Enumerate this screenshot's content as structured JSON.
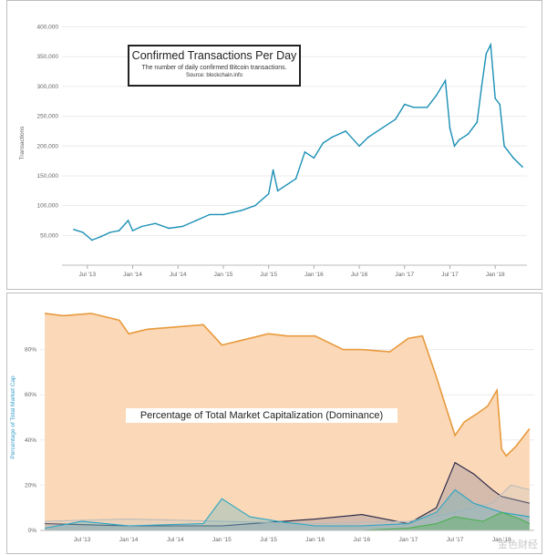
{
  "chart_data": [
    {
      "type": "line",
      "title": "Confirmed Transactions Per Day",
      "subtitle": "The number of daily confirmed Bitcoin transactions.",
      "source": "Source: blockchain.info",
      "ylabel": "Transactions",
      "ylim": [
        0,
        410000
      ],
      "y_ticks": [
        "50,000",
        "100,000",
        "150,000",
        "200,000",
        "250,000",
        "300,000",
        "350,000",
        "400,000"
      ],
      "x_ticks": [
        "Jul '13",
        "Jan '14",
        "Jul '14",
        "Jan '15",
        "Jul '15",
        "Jan '16",
        "Jul '16",
        "Jan '17",
        "Jul '17",
        "Jan '18"
      ],
      "series": [
        {
          "color": "#1a8fb5",
          "x": [
            2013.35,
            2013.45,
            2013.55,
            2013.65,
            2013.75,
            2013.85,
            2013.95,
            2014.0,
            2014.1,
            2014.25,
            2014.4,
            2014.55,
            2014.7,
            2014.85,
            2015.0,
            2015.2,
            2015.35,
            2015.5,
            2015.55,
            2015.6,
            2015.8,
            2015.9,
            2016.0,
            2016.1,
            2016.2,
            2016.35,
            2016.5,
            2016.6,
            2016.75,
            2016.9,
            2017.0,
            2017.1,
            2017.25,
            2017.35,
            2017.45,
            2017.5,
            2017.55,
            2017.6,
            2017.7,
            2017.8,
            2017.85,
            2017.9,
            2017.95,
            2018.0,
            2018.05,
            2018.1,
            2018.2,
            2018.3
          ],
          "y": [
            60000,
            55000,
            42000,
            48000,
            55000,
            58000,
            75000,
            58000,
            65000,
            70000,
            62000,
            65000,
            75000,
            85000,
            85000,
            92000,
            100000,
            120000,
            160000,
            125000,
            145000,
            190000,
            180000,
            205000,
            215000,
            225000,
            200000,
            215000,
            230000,
            245000,
            270000,
            265000,
            265000,
            285000,
            310000,
            230000,
            200000,
            210000,
            220000,
            240000,
            300000,
            355000,
            370000,
            280000,
            270000,
            200000,
            180000,
            165000
          ]
        }
      ]
    },
    {
      "type": "area",
      "title": "Percentage of Total Market Capitalization (Dominance)",
      "ylabel": "Percentage of Total Market Cap",
      "ylim": [
        0,
        100
      ],
      "y_ticks": [
        "0%",
        "20%",
        "40%",
        "60%",
        "80%"
      ],
      "x_ticks": [
        "Jul '13",
        "Jan '14",
        "Jul '14",
        "Jan '15",
        "Jul '15",
        "Jan '16",
        "Jul '16",
        "Jan '17",
        "Jul '17",
        "Jan '18"
      ],
      "series": [
        {
          "color": "#e89a3c",
          "fill": "#fbd8b7",
          "x": [
            2013.1,
            2013.3,
            2013.6,
            2013.9,
            2014.0,
            2014.2,
            2014.5,
            2014.8,
            2015.0,
            2015.2,
            2015.5,
            2015.7,
            2016.0,
            2016.3,
            2016.5,
            2016.8,
            2017.0,
            2017.15,
            2017.3,
            2017.4,
            2017.5,
            2017.6,
            2017.75,
            2017.85,
            2017.95,
            2018.0,
            2018.05,
            2018.15,
            2018.3
          ],
          "y": [
            96,
            95,
            96,
            93,
            87,
            89,
            90,
            91,
            82,
            84,
            87,
            86,
            86,
            80,
            80,
            79,
            85,
            86,
            68,
            55,
            42,
            48,
            52,
            55,
            62,
            36,
            33,
            37,
            45
          ]
        },
        {
          "color": "#222244",
          "fill": "rgba(100,100,140,0.25)",
          "x": [
            2013.1,
            2014.0,
            2015.0,
            2016.0,
            2016.5,
            2017.0,
            2017.3,
            2017.5,
            2017.7,
            2017.9,
            2018.0,
            2018.3
          ],
          "y": [
            3,
            2,
            2,
            5,
            7,
            3,
            10,
            30,
            25,
            18,
            15,
            12
          ]
        },
        {
          "color": "#bbbbbb",
          "fill": "rgba(200,200,200,0.3)",
          "x": [
            2013.1,
            2014.0,
            2015.0,
            2016.0,
            2017.0,
            2017.5,
            2017.9,
            2018.1,
            2018.3
          ],
          "y": [
            4,
            5,
            4,
            3,
            4,
            8,
            12,
            20,
            18
          ]
        },
        {
          "color": "#2aa6c4",
          "fill": "rgba(42,166,196,0.25)",
          "x": [
            2013.1,
            2013.5,
            2014.0,
            2014.8,
            2015.0,
            2015.3,
            2015.6,
            2016.0,
            2016.5,
            2017.0,
            2017.3,
            2017.5,
            2017.7,
            2018.0,
            2018.3
          ],
          "y": [
            1,
            4,
            2,
            3,
            14,
            6,
            4,
            2,
            2,
            3,
            8,
            18,
            12,
            8,
            6
          ]
        },
        {
          "color": "#4caf50",
          "fill": "rgba(76,175,80,0.35)",
          "x": [
            2013.1,
            2016.5,
            2017.0,
            2017.3,
            2017.5,
            2017.8,
            2018.0,
            2018.2,
            2018.3
          ],
          "y": [
            0,
            0,
            1,
            3,
            6,
            4,
            8,
            5,
            3
          ]
        }
      ]
    }
  ],
  "watermark": "金色财经"
}
